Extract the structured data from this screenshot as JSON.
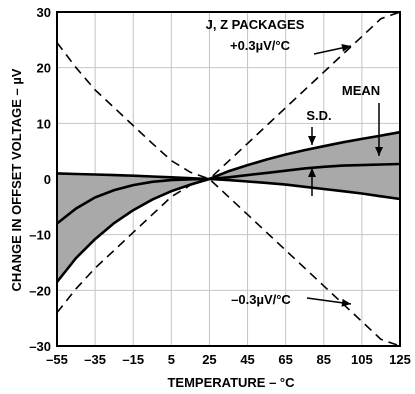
{
  "chart_data": {
    "type": "line",
    "xlabel": "TEMPERATURE – °C",
    "ylabel": "CHANGE IN OFFSET VOLTAGE – µV",
    "xlim": [
      -55,
      125
    ],
    "ylim": [
      -30,
      30
    ],
    "x_ticks": [
      -55,
      -35,
      -15,
      5,
      25,
      45,
      65,
      85,
      105,
      125
    ],
    "y_ticks": [
      -30,
      -20,
      -10,
      0,
      10,
      20,
      30
    ],
    "grid": true,
    "colors": {
      "band_fill": "#a9a9a9",
      "line": "#000000",
      "frame": "#000000"
    },
    "x": [
      -55,
      -45,
      -35,
      -25,
      -15,
      -5,
      5,
      15,
      25,
      35,
      45,
      55,
      65,
      75,
      85,
      95,
      105,
      115,
      125
    ],
    "series": [
      {
        "name": "MEAN",
        "values": [
          -8.0,
          -5.3,
          -3.3,
          -2.0,
          -1.1,
          -0.5,
          -0.2,
          -0.05,
          0,
          0.3,
          0.7,
          1.1,
          1.5,
          1.9,
          2.2,
          2.4,
          2.5,
          2.6,
          2.7
        ]
      },
      {
        "values": [
          1.0,
          0.9,
          0.8,
          0.7,
          0.6,
          0.45,
          0.3,
          0.15,
          0,
          -0.2,
          -0.45,
          -0.7,
          -1.0,
          -1.4,
          -1.8,
          -2.2,
          -2.6,
          -3.1,
          -3.6
        ]
      },
      {
        "values": [
          -18.5,
          -14.2,
          -10.8,
          -7.9,
          -5.6,
          -3.7,
          -2.2,
          -1.0,
          0,
          1.4,
          2.5,
          3.5,
          4.4,
          5.2,
          5.9,
          6.6,
          7.2,
          7.8,
          8.4
        ]
      },
      {
        "values": [
          24.5,
          20.0,
          16.0,
          12.8,
          9.6,
          6.4,
          3.3,
          1.2,
          0,
          -3.2,
          -6.4,
          -9.6,
          -12.8,
          -16.0,
          -19.2,
          -22.4,
          -25.6,
          -28.8,
          -30
        ]
      },
      {
        "values": [
          -24.0,
          -19.7,
          -16.0,
          -12.8,
          -9.6,
          -6.4,
          -3.2,
          -1.1,
          0,
          3.2,
          6.4,
          9.6,
          12.8,
          16.0,
          19.2,
          22.4,
          25.6,
          28.8,
          30
        ]
      }
    ],
    "annotations": {
      "packages": "J, Z PACKAGES",
      "pos_slope": "+0.3µV/°C",
      "neg_slope": "–0.3µV/°C",
      "sd": "S.D.",
      "mean": "MEAN"
    }
  }
}
